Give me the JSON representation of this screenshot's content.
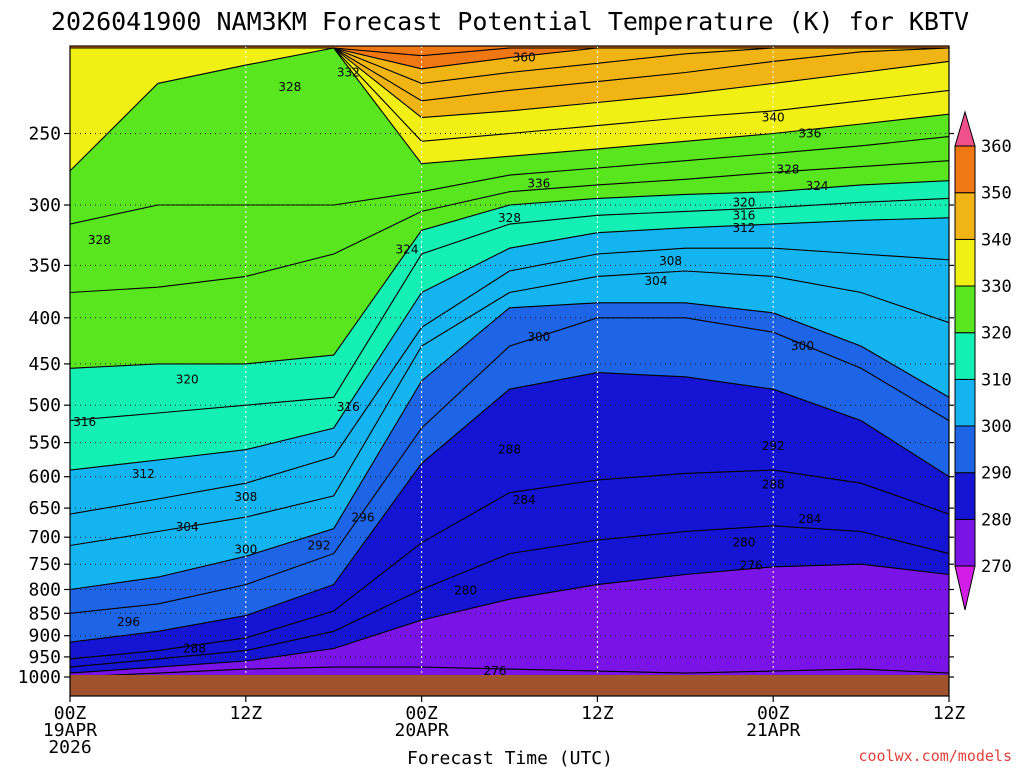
{
  "chart_data": {
    "type": "heatmap",
    "title": "2026041900 NAM3KM Forecast Potential Temperature (K) for KBTV",
    "xlabel": "Forecast Time (UTC)",
    "ylabel": "",
    "x_ticks": [
      {
        "hour": 0,
        "lines": [
          "00Z",
          "19APR",
          "2026"
        ]
      },
      {
        "hour": 12,
        "lines": [
          "12Z"
        ]
      },
      {
        "hour": 24,
        "lines": [
          "00Z",
          "20APR"
        ]
      },
      {
        "hour": 36,
        "lines": [
          "12Z"
        ]
      },
      {
        "hour": 48,
        "lines": [
          "00Z",
          "21APR"
        ]
      },
      {
        "hour": 60,
        "lines": [
          "12Z"
        ]
      }
    ],
    "x_range_hours": [
      0,
      60
    ],
    "y_ticks_hpa": [
      250,
      300,
      350,
      400,
      450,
      500,
      550,
      600,
      650,
      700,
      750,
      800,
      850,
      900,
      950,
      1000
    ],
    "y_range_hpa": [
      200,
      1000
    ],
    "colorbar": {
      "levels": [
        270,
        280,
        290,
        300,
        310,
        320,
        330,
        340,
        350,
        360
      ],
      "colors": [
        "#d21ee6",
        "#7a14e6",
        "#1414d2",
        "#1e64e6",
        "#14b4f0",
        "#14f0b4",
        "#5ae61e",
        "#f0f014",
        "#f0b414",
        "#f07814",
        "#f0508c"
      ]
    },
    "isentropes": [
      {
        "k": 276,
        "p": [
          1000,
          990,
          980,
          975,
          975,
          980,
          985,
          990,
          985,
          980,
          990
        ]
      },
      {
        "k": 280,
        "p": [
          990,
          975,
          960,
          930,
          865,
          820,
          790,
          770,
          755,
          750,
          770
        ]
      },
      {
        "k": 284,
        "p": [
          975,
          955,
          935,
          890,
          800,
          730,
          705,
          690,
          680,
          690,
          730
        ]
      },
      {
        "k": 288,
        "p": [
          955,
          935,
          905,
          845,
          710,
          625,
          605,
          595,
          590,
          610,
          660
        ]
      },
      {
        "k": 292,
        "p": [
          915,
          890,
          855,
          790,
          580,
          480,
          460,
          465,
          480,
          520,
          600
        ]
      },
      {
        "k": 296,
        "p": [
          850,
          830,
          790,
          730,
          530,
          430,
          400,
          400,
          415,
          455,
          520
        ]
      },
      {
        "k": 300,
        "p": [
          800,
          775,
          735,
          685,
          470,
          390,
          385,
          385,
          395,
          430,
          490
        ]
      },
      {
        "k": 304,
        "p": [
          715,
          690,
          665,
          630,
          430,
          375,
          360,
          355,
          360,
          375,
          405
        ]
      },
      {
        "k": 308,
        "p": [
          660,
          635,
          610,
          570,
          410,
          355,
          340,
          335,
          335,
          340,
          345
        ]
      },
      {
        "k": 312,
        "p": [
          590,
          575,
          560,
          530,
          375,
          335,
          322,
          318,
          315,
          312,
          310
        ]
      },
      {
        "k": 316,
        "p": [
          520,
          510,
          500,
          490,
          340,
          315,
          308,
          305,
          302,
          298,
          295
        ]
      },
      {
        "k": 320,
        "p": [
          455,
          450,
          450,
          440,
          320,
          300,
          295,
          292,
          290,
          285,
          282
        ]
      },
      {
        "k": 324,
        "p": [
          375,
          370,
          360,
          340,
          305,
          290,
          285,
          281,
          276,
          272,
          268
        ]
      },
      {
        "k": 328,
        "p": [
          315,
          300,
          300,
          300,
          290,
          278,
          273,
          268,
          263,
          258,
          252
        ]
      },
      {
        "k": 332,
        "p": [
          275,
          220,
          210,
          200,
          270,
          265,
          260,
          255,
          250,
          244,
          238
        ]
      },
      {
        "k": 336,
        "p": [
          200,
          200,
          200,
          200,
          255,
          250,
          245,
          240,
          236,
          230,
          224
        ]
      },
      {
        "k": 340,
        "p": [
          200,
          200,
          200,
          200,
          240,
          236,
          231,
          226,
          220,
          214,
          208
        ]
      },
      {
        "k": 344,
        "p": [
          200,
          200,
          200,
          200,
          230,
          224,
          219,
          214,
          208,
          203,
          200
        ]
      },
      {
        "k": 348,
        "p": [
          200,
          200,
          200,
          200,
          220,
          214,
          209,
          204,
          200,
          200,
          200
        ]
      },
      {
        "k": 352,
        "p": [
          200,
          200,
          200,
          200,
          212,
          206,
          201,
          200,
          200,
          200,
          200
        ]
      },
      {
        "k": 356,
        "p": [
          200,
          200,
          200,
          200,
          205,
          200,
          200,
          200,
          200,
          200,
          200
        ]
      }
    ],
    "isentrope_hours": [
      0,
      6,
      12,
      18,
      24,
      30,
      36,
      42,
      48,
      54,
      60
    ],
    "contour_labels": [
      {
        "text": "360",
        "hour": 31,
        "hpa": 206
      },
      {
        "text": "332",
        "hour": 19,
        "hpa": 214
      },
      {
        "text": "328",
        "hour": 15,
        "hpa": 222
      },
      {
        "text": "340",
        "hour": 48,
        "hpa": 240
      },
      {
        "text": "336",
        "hour": 50.5,
        "hpa": 250
      },
      {
        "text": "328",
        "hour": 49,
        "hpa": 274
      },
      {
        "text": "324",
        "hour": 51,
        "hpa": 286
      },
      {
        "text": "336",
        "hour": 32,
        "hpa": 284
      },
      {
        "text": "320",
        "hour": 46,
        "hpa": 298
      },
      {
        "text": "316",
        "hour": 46,
        "hpa": 308
      },
      {
        "text": "328",
        "hour": 30,
        "hpa": 310
      },
      {
        "text": "312",
        "hour": 46,
        "hpa": 318
      },
      {
        "text": "328",
        "hour": 2,
        "hpa": 328
      },
      {
        "text": "324",
        "hour": 23,
        "hpa": 336
      },
      {
        "text": "308",
        "hour": 41,
        "hpa": 346
      },
      {
        "text": "304",
        "hour": 40,
        "hpa": 364
      },
      {
        "text": "300",
        "hour": 32,
        "hpa": 420
      },
      {
        "text": "300",
        "hour": 50,
        "hpa": 430
      },
      {
        "text": "320",
        "hour": 8,
        "hpa": 468
      },
      {
        "text": "316",
        "hour": 19,
        "hpa": 502
      },
      {
        "text": "316",
        "hour": 1,
        "hpa": 522
      },
      {
        "text": "288",
        "hour": 30,
        "hpa": 560
      },
      {
        "text": "292",
        "hour": 48,
        "hpa": 555
      },
      {
        "text": "312",
        "hour": 5,
        "hpa": 596
      },
      {
        "text": "288",
        "hour": 48,
        "hpa": 612
      },
      {
        "text": "284",
        "hour": 31,
        "hpa": 637
      },
      {
        "text": "308",
        "hour": 12,
        "hpa": 632
      },
      {
        "text": "296",
        "hour": 20,
        "hpa": 666
      },
      {
        "text": "284",
        "hour": 50.5,
        "hpa": 668
      },
      {
        "text": "304",
        "hour": 8,
        "hpa": 682
      },
      {
        "text": "292",
        "hour": 17,
        "hpa": 715
      },
      {
        "text": "280",
        "hour": 46,
        "hpa": 710
      },
      {
        "text": "300",
        "hour": 12,
        "hpa": 722
      },
      {
        "text": "276",
        "hour": 46.5,
        "hpa": 752
      },
      {
        "text": "280",
        "hour": 27,
        "hpa": 802
      },
      {
        "text": "296",
        "hour": 4,
        "hpa": 869
      },
      {
        "text": "288",
        "hour": 8.5,
        "hpa": 930
      },
      {
        "text": "276",
        "hour": 29,
        "hpa": 985
      }
    ],
    "ground": {
      "color": "#a0522d",
      "top_hpa": 1000
    }
  },
  "credit": "coolwx.com/models"
}
